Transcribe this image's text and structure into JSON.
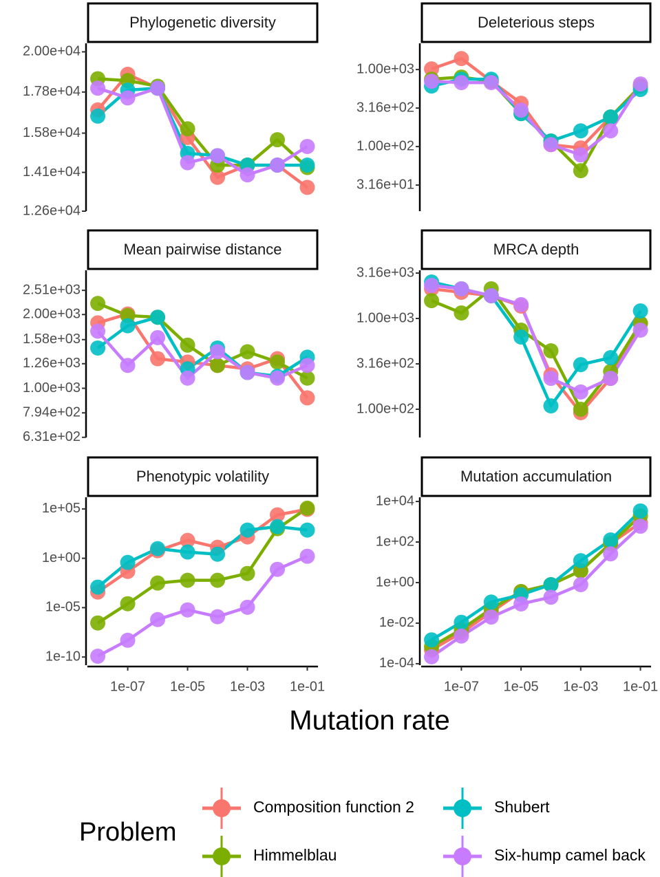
{
  "x_label": "Mutation rate",
  "legend_title": "Problem",
  "chart_data": [
    {
      "type": "line",
      "title": "Phylogenetic diversity",
      "x_scale": "log",
      "y_scale": "log",
      "x": [
        1e-08,
        1e-07,
        1e-06,
        1e-05,
        0.0001,
        0.001,
        0.01,
        0.1
      ],
      "xlim": [
        4.5e-09,
        0.227
      ],
      "ylim": [
        12600,
        20500
      ],
      "yticks": [
        {
          "value": 20000,
          "label": "2.00e+04"
        },
        {
          "value": 17800,
          "label": "1.78e+04"
        },
        {
          "value": 15800,
          "label": "1.58e+04"
        },
        {
          "value": 14100,
          "label": "1.41e+04"
        },
        {
          "value": 12600,
          "label": "1.26e+04"
        }
      ],
      "series": [
        {
          "name": "Composition function 2",
          "color": "#F8766D",
          "values": [
            16900,
            18740,
            18000,
            15600,
            13900,
            14400,
            14400,
            13500
          ]
        },
        {
          "name": "Himmelblau",
          "color": "#7CAE00",
          "values": [
            18500,
            18400,
            18100,
            16000,
            14400,
            14400,
            15500,
            14300
          ]
        },
        {
          "name": "Shubert",
          "color": "#00BFC4",
          "values": [
            16600,
            17900,
            18000,
            14900,
            14800,
            14400,
            14400,
            14400
          ]
        },
        {
          "name": "Six-hump camel back",
          "color": "#C77CFF",
          "values": [
            18000,
            17500,
            18000,
            14500,
            14800,
            14000,
            14400,
            15200
          ]
        }
      ]
    },
    {
      "type": "line",
      "title": "Deleterious steps",
      "x_scale": "log",
      "y_scale": "log",
      "x": [
        1e-08,
        1e-07,
        1e-06,
        1e-05,
        0.0001,
        0.001,
        0.01,
        0.1
      ],
      "xlim": [
        4.5e-09,
        0.227
      ],
      "ylim": [
        14.5,
        2190
      ],
      "yticks": [
        {
          "value": 1000,
          "label": "1.00e+03"
        },
        {
          "value": 316.2,
          "label": "3.16e+02"
        },
        {
          "value": 100,
          "label": "1.00e+02"
        },
        {
          "value": 31.62,
          "label": "3.16e+01"
        }
      ],
      "series": [
        {
          "name": "Composition function 2",
          "color": "#F8766D",
          "values": [
            1020,
            1390,
            705,
            365,
            106,
            96,
            242,
            611
          ]
        },
        {
          "name": "Himmelblau",
          "color": "#7CAE00",
          "values": [
            750,
            798,
            705,
            268,
            118,
            48.7,
            242,
            611
          ]
        },
        {
          "name": "Shubert",
          "color": "#00BFC4",
          "values": [
            611,
            750,
            750,
            268,
            118,
            160,
            242,
            551
          ]
        },
        {
          "name": "Six-hump camel back",
          "color": "#C77CFF",
          "values": [
            705,
            677,
            677,
            297,
            106,
            78,
            160,
            650
          ]
        }
      ]
    },
    {
      "type": "line",
      "title": "Mean pairwise distance",
      "x_scale": "log",
      "y_scale": "log",
      "x": [
        1e-08,
        1e-07,
        1e-06,
        1e-05,
        0.0001,
        0.001,
        0.01,
        0.1
      ],
      "xlim": [
        4.5e-09,
        0.227
      ],
      "ylim": [
        630,
        3030
      ],
      "yticks": [
        {
          "value": 2510,
          "label": "2.51e+03"
        },
        {
          "value": 2000,
          "label": "2.00e+03"
        },
        {
          "value": 1580,
          "label": "1.58e+03"
        },
        {
          "value": 1260,
          "label": "1.26e+03"
        },
        {
          "value": 1000,
          "label": "1.00e+03"
        },
        {
          "value": 794,
          "label": "7.94e+02"
        },
        {
          "value": 631,
          "label": "6.31e+02"
        }
      ],
      "series": [
        {
          "name": "Composition function 2",
          "color": "#F8766D",
          "values": [
            1850,
            2010,
            1320,
            1280,
            1240,
            1200,
            1320,
            914
          ]
        },
        {
          "name": "Himmelblau",
          "color": "#7CAE00",
          "values": [
            2220,
            1980,
            1950,
            1500,
            1240,
            1410,
            1280,
            1100
          ]
        },
        {
          "name": "Shubert",
          "color": "#00BFC4",
          "values": [
            1460,
            1800,
            1950,
            1200,
            1460,
            1160,
            1120,
            1340
          ]
        },
        {
          "name": "Six-hump camel back",
          "color": "#C77CFF",
          "values": [
            1710,
            1240,
            1610,
            1100,
            1410,
            1160,
            1100,
            1240
          ]
        }
      ]
    },
    {
      "type": "line",
      "title": "MRCA depth",
      "x_scale": "log",
      "y_scale": "log",
      "x": [
        1e-08,
        1e-07,
        1e-06,
        1e-05,
        0.0001,
        0.001,
        0.01,
        0.1
      ],
      "xlim": [
        4.5e-09,
        0.227
      ],
      "ylim": [
        48.9,
        3390
      ],
      "yticks": [
        {
          "value": 3162,
          "label": "3.16e+03"
        },
        {
          "value": 1000,
          "label": "1.00e+03"
        },
        {
          "value": 316.2,
          "label": "3.16e+02"
        },
        {
          "value": 100,
          "label": "1.00e+02"
        }
      ],
      "series": [
        {
          "name": "Composition function 2",
          "color": "#F8766D",
          "values": [
            2120,
            1940,
            1780,
            1370,
            239,
            91.6,
            219,
            885
          ]
        },
        {
          "name": "Himmelblau",
          "color": "#7CAE00",
          "values": [
            1570,
            1150,
            2120,
            743,
            440,
            100,
            261,
            885
          ]
        },
        {
          "name": "Shubert",
          "color": "#00BFC4",
          "values": [
            2520,
            2120,
            1780,
            624,
            109,
            310,
            370,
            1210
          ]
        },
        {
          "name": "Six-hump camel back",
          "color": "#C77CFF",
          "values": [
            2310,
            2120,
            1780,
            1420,
            219,
            155,
            219,
            743
          ]
        }
      ]
    },
    {
      "type": "line",
      "title": "Phenotypic volatility",
      "x_scale": "log",
      "y_scale": "log",
      "x": [
        1e-08,
        1e-07,
        1e-06,
        1e-05,
        0.0001,
        0.001,
        0.01,
        0.1
      ],
      "xlim": [
        4.5e-09,
        0.227
      ],
      "xticks": [
        {
          "value": 1e-07,
          "label": "1e-07"
        },
        {
          "value": 1e-05,
          "label": "1e-05"
        },
        {
          "value": 0.001,
          "label": "1e-03"
        },
        {
          "value": 0.1,
          "label": "1e-01"
        }
      ],
      "ylim": [
        1.5e-11,
        1500000.0
      ],
      "yticks": [
        {
          "value": 100000.0,
          "label": "1e+05"
        },
        {
          "value": 1,
          "label": "1e+00"
        },
        {
          "value": 1e-05,
          "label": "1e-05"
        },
        {
          "value": 1e-10,
          "label": "1e-10"
        }
      ],
      "series": [
        {
          "name": "Composition function 2",
          "color": "#F8766D",
          "values": [
            0.00038,
            0.047,
            5.9,
            65,
            13,
            145,
            25000,
            90000
          ]
        },
        {
          "name": "Himmelblau",
          "color": "#7CAE00",
          "values": [
            2.8e-07,
            2.5e-05,
            0.0031,
            0.0059,
            0.0059,
            0.029,
            1000,
            120000
          ]
        },
        {
          "name": "Shubert",
          "color": "#00BFC4",
          "values": [
            0.0012,
            0.38,
            9.5,
            4.3,
            2.6,
            720,
            1600,
            720
          ]
        },
        {
          "name": "Six-hump camel back",
          "color": "#C77CFF",
          "values": [
            1.2e-10,
            5e-09,
            6.2e-07,
            5.9e-06,
            1.2e-06,
            1.1e-05,
            0.076,
            1.6
          ]
        }
      ]
    },
    {
      "type": "line",
      "title": "Mutation accumulation",
      "x_scale": "log",
      "y_scale": "log",
      "x": [
        1e-08,
        1e-07,
        1e-06,
        1e-05,
        0.0001,
        0.001,
        0.01,
        0.1
      ],
      "xlim": [
        4.5e-09,
        0.227
      ],
      "xticks": [
        {
          "value": 1e-07,
          "label": "1e-07"
        },
        {
          "value": 1e-05,
          "label": "1e-05"
        },
        {
          "value": 0.001,
          "label": "1e-03"
        },
        {
          "value": 0.1,
          "label": "1e-01"
        }
      ],
      "ylim": [
        8.5e-05,
        16000
      ],
      "yticks": [
        {
          "value": 10000,
          "label": "1e+04"
        },
        {
          "value": 100,
          "label": "1e+02"
        },
        {
          "value": 1,
          "label": "1e+00"
        },
        {
          "value": 0.01,
          "label": "1e-02"
        },
        {
          "value": 0.0001,
          "label": "1e-04"
        }
      ],
      "series": [
        {
          "name": "Composition function 2",
          "color": "#F8766D",
          "values": [
            0.00048,
            0.0034,
            0.035,
            0.36,
            0.79,
            3.8,
            85,
            890
          ]
        },
        {
          "name": "Himmelblau",
          "color": "#7CAE00",
          "values": [
            0.0007,
            0.0049,
            0.051,
            0.36,
            0.79,
            3.8,
            85,
            1950
          ]
        },
        {
          "name": "Shubert",
          "color": "#00BFC4",
          "values": [
            0.0015,
            0.011,
            0.11,
            0.25,
            0.79,
            12,
            126,
            3400
          ]
        },
        {
          "name": "Six-hump camel back",
          "color": "#C77CFF",
          "values": [
            0.00022,
            0.0023,
            0.02,
            0.089,
            0.19,
            0.79,
            26,
            600
          ]
        }
      ]
    }
  ]
}
